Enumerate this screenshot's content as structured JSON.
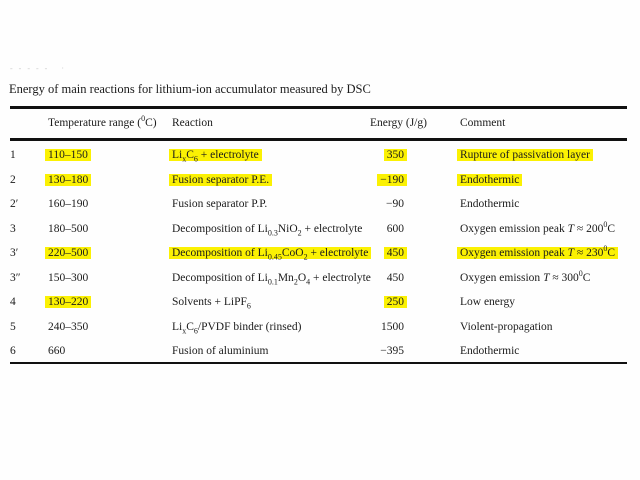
{
  "page": {
    "fragment": "- - - - -   ·"
  },
  "table": {
    "title": "Energy of main reactions for lithium-ion accumulator measured by DSC",
    "highlight_color": "#fbf103",
    "headers": [
      {
        "key": "id",
        "segs": [
          {
            "t": ""
          }
        ]
      },
      {
        "key": "temp",
        "segs": [
          {
            "t": "Temperature range ("
          },
          {
            "sup": "0"
          },
          {
            "t": "C)"
          }
        ]
      },
      {
        "key": "reaction",
        "segs": [
          {
            "t": "Reaction"
          }
        ]
      },
      {
        "key": "energy",
        "segs": [
          {
            "t": "Energy (J/g)"
          }
        ]
      },
      {
        "key": "comment",
        "segs": [
          {
            "t": "Comment"
          }
        ]
      }
    ],
    "rows": [
      {
        "id": "1",
        "temp": "110–150",
        "energy": "350",
        "reaction": [
          {
            "t": "Li"
          },
          {
            "sub": "x"
          },
          {
            "t": "C"
          },
          {
            "sub": "6"
          },
          {
            "t": " + electrolyte"
          }
        ],
        "comment": [
          {
            "t": "Rupture of passivation layer"
          }
        ],
        "hl": {
          "temp": true,
          "reaction": true,
          "energy": true,
          "comment": true
        }
      },
      {
        "id": "2",
        "temp": "130–180",
        "energy": "−190",
        "reaction": [
          {
            "t": "Fusion separator P.E."
          }
        ],
        "comment": [
          {
            "t": "Endothermic"
          }
        ],
        "hl": {
          "temp": true,
          "reaction": true,
          "energy": true,
          "comment": true
        }
      },
      {
        "id": "2′",
        "temp": "160–190",
        "energy": "−90",
        "reaction": [
          {
            "t": "Fusion separator P.P."
          }
        ],
        "comment": [
          {
            "t": "Endothermic"
          }
        ],
        "hl": {
          "temp": false,
          "reaction": false,
          "energy": false,
          "comment": false
        }
      },
      {
        "id": "3",
        "temp": "180–500",
        "energy": "600",
        "reaction": [
          {
            "t": "Decomposition of Li"
          },
          {
            "sub": "0.3"
          },
          {
            "t": "NiO"
          },
          {
            "sub": "2"
          },
          {
            "t": " + electrolyte"
          }
        ],
        "comment": [
          {
            "t": "Oxygen emission peak "
          },
          {
            "i": "T"
          },
          {
            "t": " ≈ 200"
          },
          {
            "sup": "0"
          },
          {
            "t": "C"
          }
        ],
        "hl": {
          "temp": false,
          "reaction": false,
          "energy": false,
          "comment": false
        }
      },
      {
        "id": "3′",
        "temp": "220–500",
        "energy": "450",
        "reaction": [
          {
            "t": "Decomposition of Li"
          },
          {
            "sub": "0.45"
          },
          {
            "t": "CoO"
          },
          {
            "sub": "2"
          },
          {
            "t": " + electrolyte"
          }
        ],
        "comment": [
          {
            "t": "Oxygen emission peak "
          },
          {
            "i": "T"
          },
          {
            "t": " ≈ 230"
          },
          {
            "sup": "0"
          },
          {
            "t": "C"
          }
        ],
        "hl": {
          "temp": true,
          "reaction": true,
          "energy": true,
          "comment": true
        }
      },
      {
        "id": "3″",
        "temp": "150–300",
        "energy": "450",
        "reaction": [
          {
            "t": "Decomposition of Li"
          },
          {
            "sub": "0.1"
          },
          {
            "t": "Mn"
          },
          {
            "sub": "2"
          },
          {
            "t": "O"
          },
          {
            "sub": "4"
          },
          {
            "t": " + electrolyte"
          }
        ],
        "comment": [
          {
            "t": "Oxygen emission "
          },
          {
            "i": "T"
          },
          {
            "t": " ≈ 300"
          },
          {
            "sup": "0"
          },
          {
            "t": "C"
          }
        ],
        "hl": {
          "temp": false,
          "reaction": false,
          "energy": false,
          "comment": false
        }
      },
      {
        "id": "4",
        "temp": "130–220",
        "energy": "250",
        "reaction": [
          {
            "t": "Solvents + LiPF"
          },
          {
            "sub": "6"
          }
        ],
        "comment": [
          {
            "t": "Low energy"
          }
        ],
        "hl": {
          "temp": true,
          "reaction": false,
          "energy": true,
          "comment": false
        }
      },
      {
        "id": "5",
        "temp": "240–350",
        "energy": "1500",
        "reaction": [
          {
            "t": "Li"
          },
          {
            "sub": "x"
          },
          {
            "t": "C"
          },
          {
            "sub": "6"
          },
          {
            "t": "/PVDF binder (rinsed)"
          }
        ],
        "comment": [
          {
            "t": "Violent-propagation"
          }
        ],
        "hl": {
          "temp": false,
          "reaction": false,
          "energy": false,
          "comment": false
        }
      },
      {
        "id": "6",
        "temp": "660",
        "energy": "−395",
        "reaction": [
          {
            "t": "Fusion of aluminium"
          }
        ],
        "comment": [
          {
            "t": "Endothermic"
          }
        ],
        "hl": {
          "temp": false,
          "reaction": false,
          "energy": false,
          "comment": false
        }
      }
    ]
  }
}
